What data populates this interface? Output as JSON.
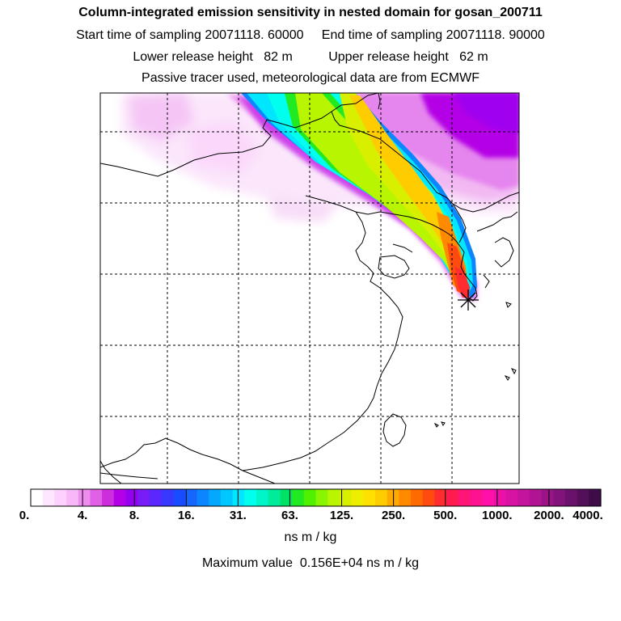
{
  "header": {
    "title": "Column-integrated emission sensitivity in nested domain for gosan_200711",
    "line1": "Start time of sampling 20071118. 60000     End time of sampling 20071118. 90000",
    "line2": "Lower release height   82 m          Upper release height   62 m",
    "line3": "Passive tracer used, meteorological data are from ECMWF"
  },
  "colorbar": {
    "labels": [
      "0.",
      "4.",
      "8.",
      "16.",
      "31.",
      "63.",
      "125.",
      "250.",
      "500.",
      "1000.",
      "2000.",
      "4000."
    ],
    "colors": [
      "#ffffff",
      "#ffe6ff",
      "#fdd1fd",
      "#f8b8f8",
      "#ee8dee",
      "#e061e6",
      "#cc2ddd",
      "#b400e6",
      "#9400f0",
      "#7a1cf5",
      "#5a28ff",
      "#3838ff",
      "#1a4cff",
      "#1466ff",
      "#0c86ff",
      "#05a8ff",
      "#00c8ff",
      "#00e6ff",
      "#00ffee",
      "#00f5c8",
      "#00eb9a",
      "#00e168",
      "#22ea22",
      "#4ff000",
      "#8af500",
      "#b8f500",
      "#d8f000",
      "#f0ee00",
      "#ffe000",
      "#ffcc00",
      "#ffaa00",
      "#ff8a00",
      "#ff6a00",
      "#ff4a10",
      "#ff2d30",
      "#ff1a50",
      "#ff1477",
      "#ff1290",
      "#ff10a8",
      "#ec10a8",
      "#d812a4",
      "#c4139d",
      "#b01494",
      "#9a1488",
      "#82137a",
      "#6a126b",
      "#540f5a",
      "#3e0c48"
    ],
    "units": "ns m / kg"
  },
  "footer": {
    "max_value_text": "Maximum value  0.156E+04 ns m / kg"
  },
  "map": {
    "receptor_marker": "asterisk-icon",
    "grid_style": "dashed",
    "grid_on": true
  }
}
